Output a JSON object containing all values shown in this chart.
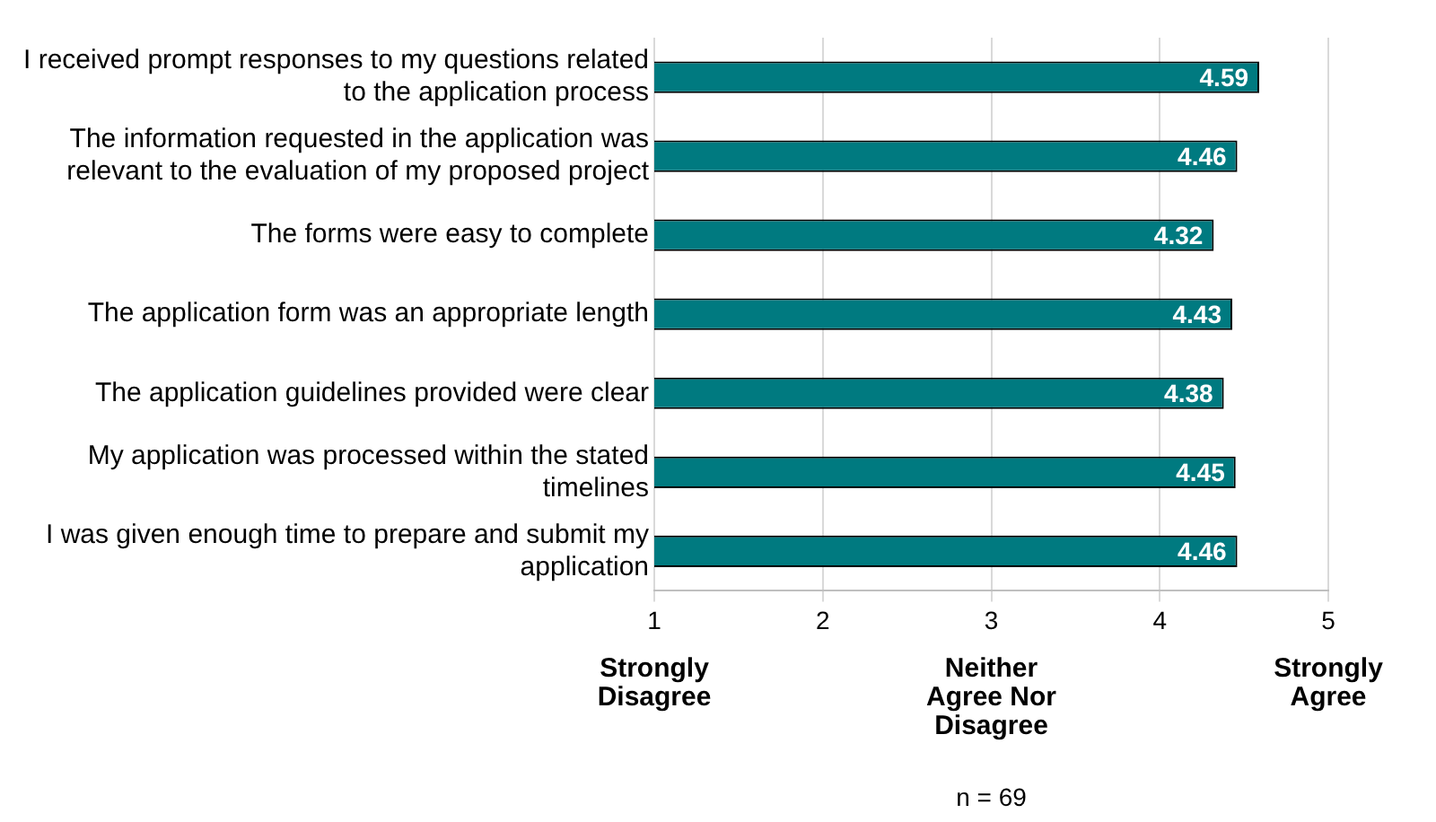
{
  "chart_data": {
    "type": "bar",
    "orientation": "horizontal",
    "categories": [
      "I received prompt responses to my questions related to the application process",
      "The information requested in the application was relevant to the evaluation of my proposed project",
      "The forms were easy to complete",
      "The application form was an appropriate length",
      "The application guidelines provided were clear",
      "My application was processed within the stated timelines",
      "I was given enough time to prepare and submit my application"
    ],
    "values": [
      4.59,
      4.46,
      4.32,
      4.43,
      4.38,
      4.45,
      4.46
    ],
    "color": "#007a80",
    "xlim": [
      1,
      5
    ],
    "xticks": [
      1,
      2,
      3,
      4,
      5
    ],
    "grid": "x",
    "legend": false,
    "data_labels": true,
    "annotations": [
      "Strongly Disagree",
      "Neither Agree Nor Disagree",
      "Strongly Agree",
      "n = 69"
    ]
  }
}
